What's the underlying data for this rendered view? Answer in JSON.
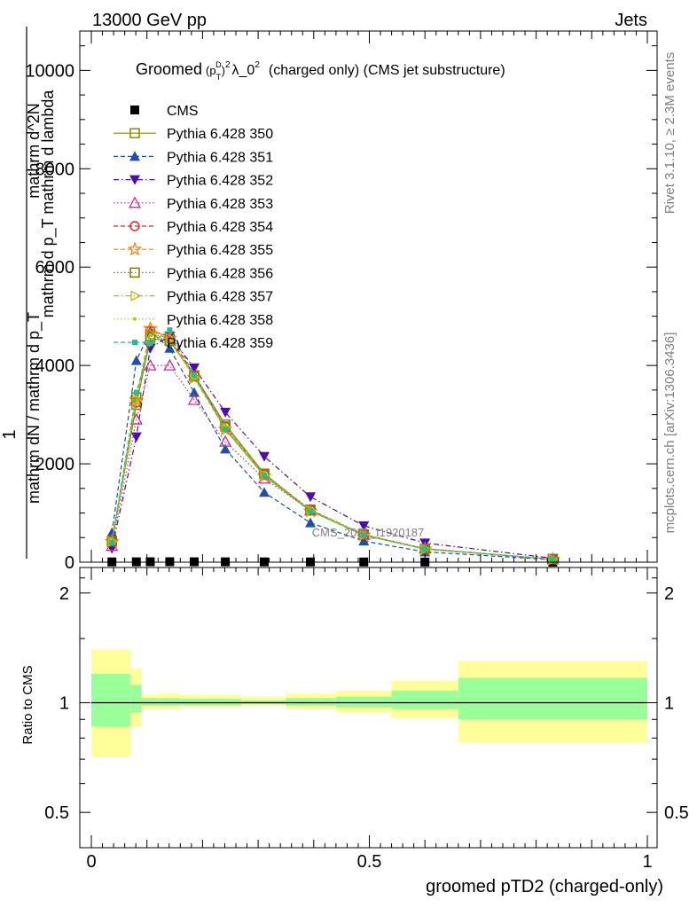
{
  "header": {
    "energy_label": "13000 GeV pp",
    "process_label": "Jets",
    "rivet_label": "Rivet 3.1.10, ≥ 2.3M events",
    "mcplots_label": "mcplots.cern.ch [arXiv:1306.3436]",
    "analysis_id": "CMS_2021_I1920187"
  },
  "chart_data": {
    "type": "line",
    "title": "Groomed (p_T^D)^2 λ_0^2 (charged only) (CMS jet substructure)",
    "title_parts": {
      "pre": "Groomed",
      "pt": "p",
      "sub": "T",
      "sup": "D",
      "exp": "2",
      "lam": "λ_0",
      "post": "(charged only) (CMS jet substructure)"
    },
    "xlabel": "groomed pTD2 (charged-only)",
    "ylabel_main": "1 / mathrm d N / mathrm d p_T mathrm d^2N / mathrm d p_T mathrm d lambda",
    "ylabel_parts": {
      "num": "1",
      "den": "mathrm dN / mathrm d p_T",
      "num2": "mathrm d^2N",
      "den2": "mathrm d p_T mathrm d lambda"
    },
    "ylabel_ratio": "Ratio to CMS",
    "xlim": [
      -0.02,
      1.02
    ],
    "ylim": [
      0,
      10800
    ],
    "ratio_ylim": [
      0.4,
      2.35
    ],
    "x_ticks": [
      "0",
      "0.5",
      "1"
    ],
    "y_ticks": [
      "0",
      "2000",
      "4000",
      "6000",
      "8000",
      "10000"
    ],
    "ratio_ticks": [
      "0.5",
      "1",
      "2"
    ],
    "legend_position": "top-left",
    "x": [
      0.037,
      0.081,
      0.106,
      0.141,
      0.185,
      0.241,
      0.311,
      0.394,
      0.49,
      0.6,
      0.83
    ],
    "cms": [
      6,
      7,
      8,
      9,
      8,
      7,
      6,
      5,
      4,
      3,
      1
    ],
    "series": [
      {
        "name": "CMS",
        "color": "#000000",
        "marker": "square-filled",
        "dash": "none",
        "values": [
          6,
          7,
          8,
          9,
          8,
          7,
          6,
          5,
          4,
          3,
          1
        ]
      },
      {
        "name": "Pythia 6.428 350",
        "color": "#8b8b00",
        "marker": "square-open",
        "dash": "solid",
        "values": [
          410,
          3200,
          4550,
          4500,
          3800,
          2800,
          1800,
          1050,
          550,
          270,
          60
        ]
      },
      {
        "name": "Pythia 6.428 351",
        "color": "#1f4fa8",
        "marker": "triangle-up-filled",
        "dash": "dash",
        "values": [
          600,
          4100,
          4700,
          4350,
          3450,
          2300,
          1420,
          800,
          430,
          210,
          50
        ]
      },
      {
        "name": "Pythia 6.428 352",
        "color": "#4b0fa8",
        "marker": "triangle-down-filled",
        "dash": "dashdot",
        "values": [
          280,
          2550,
          4350,
          4600,
          3950,
          3050,
          2150,
          1330,
          740,
          390,
          80
        ]
      },
      {
        "name": "Pythia 6.428 353",
        "color": "#c0308f",
        "marker": "triangle-up-open",
        "dash": "dot",
        "values": [
          330,
          2900,
          4000,
          4000,
          3300,
          2450,
          1700,
          1050,
          560,
          280,
          60
        ]
      },
      {
        "name": "Pythia 6.428 354",
        "color": "#d62728",
        "marker": "circle-open",
        "dash": "dash",
        "values": [
          420,
          3250,
          4700,
          4600,
          3800,
          2750,
          1780,
          1060,
          560,
          270,
          60
        ]
      },
      {
        "name": "Pythia 6.428 355",
        "color": "#ff7f0e",
        "marker": "star-open",
        "dash": "dash",
        "values": [
          420,
          3300,
          4750,
          4550,
          3750,
          2700,
          1750,
          1040,
          550,
          265,
          60
        ]
      },
      {
        "name": "Pythia 6.428 356",
        "color": "#7a7a10",
        "marker": "square-open",
        "dash": "dot",
        "values": [
          430,
          3350,
          4600,
          4500,
          3780,
          2760,
          1790,
          1070,
          565,
          275,
          60
        ]
      },
      {
        "name": "Pythia 6.428 357",
        "color": "#c8b400",
        "marker": "triangle-right-open",
        "dash": "dashdot",
        "values": [
          420,
          3300,
          4650,
          4550,
          3760,
          2740,
          1770,
          1055,
          555,
          270,
          60
        ]
      },
      {
        "name": "Pythia 6.428 358",
        "color": "#b8c800",
        "marker": "dot-small",
        "dash": "dot",
        "values": [
          415,
          3280,
          4620,
          4530,
          3770,
          2750,
          1780,
          1060,
          560,
          272,
          60
        ]
      },
      {
        "name": "Pythia 6.428 359",
        "color": "#1fbf8f",
        "marker": "square-filled-small",
        "dash": "dash",
        "values": [
          400,
          3450,
          4450,
          4720,
          3800,
          2700,
          1760,
          1040,
          550,
          268,
          60
        ]
      }
    ],
    "ratio_bands": [
      {
        "xlo": 0.0,
        "xhi": 0.07,
        "outer": [
          0.71,
          1.4
        ],
        "inner": [
          0.86,
          1.2
        ]
      },
      {
        "xlo": 0.07,
        "xhi": 0.09,
        "outer": [
          0.86,
          1.24
        ],
        "inner": [
          0.94,
          1.12
        ]
      },
      {
        "xlo": 0.09,
        "xhi": 0.12,
        "outer": [
          0.96,
          1.05
        ],
        "inner": [
          0.98,
          1.03
        ]
      },
      {
        "xlo": 0.12,
        "xhi": 0.16,
        "outer": [
          0.96,
          1.06
        ],
        "inner": [
          0.98,
          1.03
        ]
      },
      {
        "xlo": 0.16,
        "xhi": 0.21,
        "outer": [
          0.97,
          1.05
        ],
        "inner": [
          0.985,
          1.025
        ]
      },
      {
        "xlo": 0.21,
        "xhi": 0.27,
        "outer": [
          0.97,
          1.05
        ],
        "inner": [
          0.985,
          1.025
        ]
      },
      {
        "xlo": 0.27,
        "xhi": 0.35,
        "outer": [
          0.98,
          1.04
        ],
        "inner": [
          0.99,
          1.015
        ]
      },
      {
        "xlo": 0.35,
        "xhi": 0.44,
        "outer": [
          0.96,
          1.06
        ],
        "inner": [
          0.98,
          1.03
        ]
      },
      {
        "xlo": 0.44,
        "xhi": 0.54,
        "outer": [
          0.94,
          1.08
        ],
        "inner": [
          0.97,
          1.04
        ]
      },
      {
        "xlo": 0.54,
        "xhi": 0.66,
        "outer": [
          0.91,
          1.15
        ],
        "inner": [
          0.96,
          1.08
        ]
      },
      {
        "xlo": 0.66,
        "xhi": 1.0,
        "outer": [
          0.78,
          1.3
        ],
        "inner": [
          0.9,
          1.17
        ]
      }
    ],
    "band_colors": {
      "outer": "#ffff99",
      "inner": "#99ff99"
    }
  }
}
